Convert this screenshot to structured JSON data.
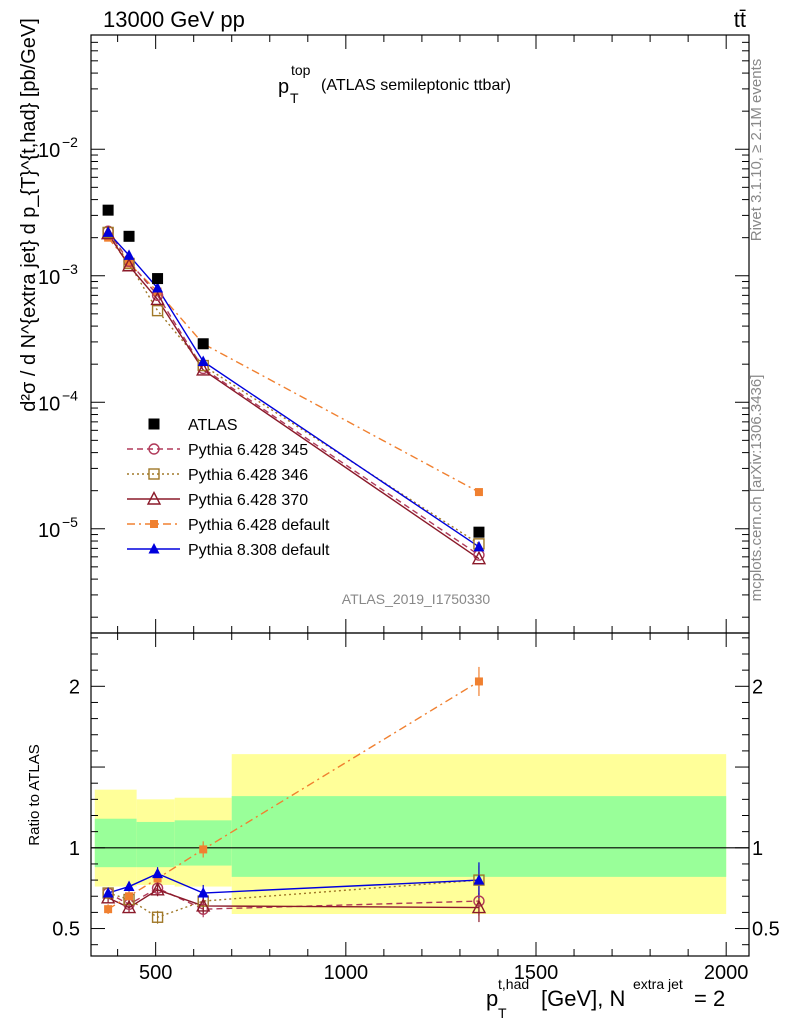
{
  "header": {
    "energy_label": "13000 GeV pp",
    "process_label": "tt̄"
  },
  "side": {
    "rivet": "Rivet 3.1.10, ≥ 2.1M events",
    "mcplots": "mcplots.cern.ch [arXiv:1306.3436]"
  },
  "chart_data": [
    {
      "type": "scatter",
      "title_main": "p",
      "title_sup": "top",
      "title_sub": "T",
      "title_rest": "(ATLAS semileptonic ttbar)",
      "analysis_id": "ATLAS_2019_I1750330",
      "ylabel": "d²σ / d N^{extra jet} d p_{T}^{t,had} [pb/GeV]",
      "yscale": "log",
      "ylim": [
        1.5e-06,
        0.08
      ],
      "xlim": [
        330,
        2060
      ],
      "ytick_labels": [
        {
          "value": 1e-05,
          "base": "10",
          "exp": "−5"
        },
        {
          "value": 0.0001,
          "base": "10",
          "exp": "−4"
        },
        {
          "value": 0.001,
          "base": "10",
          "exp": "−3"
        },
        {
          "value": 0.01,
          "base": "10",
          "exp": "−2"
        }
      ],
      "legend_position": "bottom-left",
      "series": [
        {
          "name": "ATLAS",
          "color": "#000000",
          "marker": "filled-square",
          "line": "none",
          "x": [
            375,
            430,
            505,
            625,
            1350
          ],
          "y": [
            0.0033,
            0.00205,
            0.00095,
            0.00029,
            9.4e-06
          ]
        },
        {
          "name": "Pythia 6.428 345",
          "color": "#b03a5a",
          "marker": "open-circle",
          "line": "dashed",
          "x": [
            375,
            430,
            505,
            625,
            1350
          ],
          "y": [
            0.00225,
            0.0013,
            0.0007,
            0.000185,
            6.2e-06
          ]
        },
        {
          "name": "Pythia 6.428 346",
          "color": "#a07828",
          "marker": "open-square",
          "line": "dotted",
          "x": [
            375,
            430,
            505,
            625,
            1350
          ],
          "y": [
            0.0022,
            0.00125,
            0.00053,
            0.000195,
            7.6e-06
          ]
        },
        {
          "name": "Pythia 6.428 370",
          "color": "#8b1a2a",
          "marker": "open-triangle",
          "line": "solid",
          "x": [
            375,
            430,
            505,
            625,
            1350
          ],
          "y": [
            0.00215,
            0.0012,
            0.00065,
            0.00018,
            5.8e-06
          ]
        },
        {
          "name": "Pythia 6.428 default",
          "color": "#f08030",
          "marker": "small-filled-square",
          "line": "dashdot",
          "x": [
            375,
            430,
            505,
            625,
            1350
          ],
          "y": [
            0.002,
            0.00125,
            0.00075,
            0.00029,
            1.95e-05
          ]
        },
        {
          "name": "Pythia 8.308 default",
          "color": "#0000dd",
          "marker": "filled-triangle",
          "line": "solid",
          "x": [
            375,
            430,
            505,
            625,
            1350
          ],
          "y": [
            0.0022,
            0.00145,
            0.0008,
            0.00021,
            7.2e-06
          ]
        }
      ]
    },
    {
      "type": "scatter",
      "ylabel": "Ratio to ATLAS",
      "xlabel": "[GeV], N",
      "xlabel_main": "p",
      "xlabel_sup": "t,had",
      "xlabel_sub": "T",
      "xlabel_sup2": "extra jet",
      "xlabel_tail": "= 2",
      "xlim": [
        330,
        2060
      ],
      "ylim": [
        0.33,
        2.33
      ],
      "xtick_labels": [
        "500",
        "1000",
        "1500",
        "2000"
      ],
      "xtick_values": [
        500,
        1000,
        1500,
        2000
      ],
      "ytick_labels": [
        "0.5",
        "1",
        "2"
      ],
      "ytick_values": [
        0.5,
        1,
        2
      ],
      "bands": [
        {
          "x0": 340,
          "x1": 450,
          "yellow": [
            0.76,
            1.36
          ],
          "green": [
            0.88,
            1.18
          ]
        },
        {
          "x0": 450,
          "x1": 550,
          "yellow": [
            0.77,
            1.3
          ],
          "green": [
            0.88,
            1.16
          ]
        },
        {
          "x0": 550,
          "x1": 700,
          "yellow": [
            0.76,
            1.31
          ],
          "green": [
            0.89,
            1.17
          ]
        },
        {
          "x0": 700,
          "x1": 2000,
          "yellow": [
            0.59,
            1.58
          ],
          "green": [
            0.82,
            1.32
          ]
        }
      ],
      "series": [
        {
          "name": "Pythia 6.428 345",
          "x": [
            375,
            430,
            505,
            625,
            1350
          ],
          "y": [
            0.72,
            0.65,
            0.75,
            0.62,
            0.67
          ],
          "err": [
            0.03,
            0.03,
            0.04,
            0.05,
            0.09
          ]
        },
        {
          "name": "Pythia 6.428 346",
          "x": [
            375,
            430,
            505,
            625,
            1350
          ],
          "y": [
            0.72,
            0.68,
            0.57,
            0.67,
            0.8
          ],
          "err": [
            0.03,
            0.03,
            0.04,
            0.05,
            0.09
          ]
        },
        {
          "name": "Pythia 6.428 370",
          "x": [
            375,
            430,
            505,
            625,
            1350
          ],
          "y": [
            0.69,
            0.63,
            0.74,
            0.64,
            0.63
          ],
          "err": [
            0.03,
            0.03,
            0.04,
            0.05,
            0.09
          ]
        },
        {
          "name": "Pythia 6.428 default",
          "x": [
            375,
            430,
            505,
            625,
            1350
          ],
          "y": [
            0.62,
            0.7,
            0.81,
            0.99,
            2.03
          ],
          "err": [
            0.03,
            0.03,
            0.04,
            0.05,
            0.09
          ]
        },
        {
          "name": "Pythia 8.308 default",
          "x": [
            375,
            430,
            505,
            625,
            1350
          ],
          "y": [
            0.72,
            0.76,
            0.84,
            0.72,
            0.8
          ],
          "err": [
            0.03,
            0.03,
            0.04,
            0.05,
            0.11
          ]
        }
      ]
    }
  ]
}
